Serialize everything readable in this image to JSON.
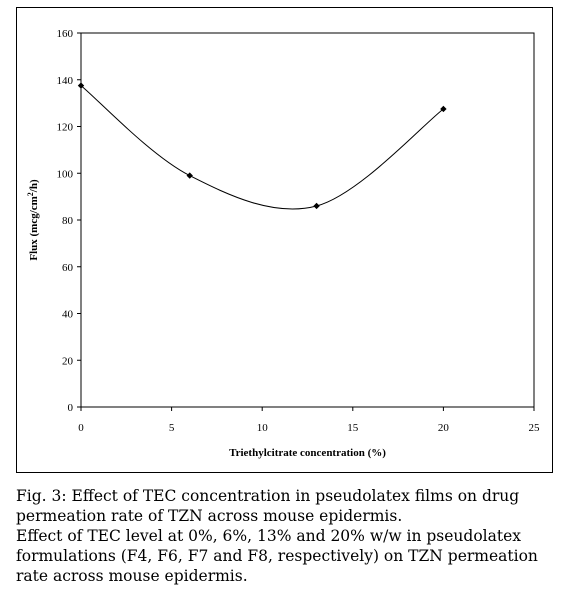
{
  "chart_data": {
    "type": "line",
    "smooth": true,
    "x": [
      0,
      6,
      13,
      20
    ],
    "y": [
      137.5,
      99,
      86,
      127.5
    ],
    "xlim": [
      0,
      25
    ],
    "ylim": [
      0,
      160
    ],
    "xticks": [
      0,
      5,
      10,
      15,
      20,
      25
    ],
    "yticks": [
      0,
      20,
      40,
      60,
      80,
      100,
      120,
      140,
      160
    ],
    "xlabel": "Triethylcitrate concentration (%)",
    "ylabel": "Flux (mcg/cm²/h)",
    "grid": false,
    "legend": "none",
    "line_color": "#000000",
    "marker": "diamond"
  },
  "caption": {
    "title": "Fig. 3: Effect of TEC concentration in pseudolatex films on drug permeation rate of TZN across mouse epidermis.",
    "body": "Effect of TEC level at 0%, 6%, 13% and 20% w/w in pseudolatex formulations (F4, F6, F7 and F8, respectively) on TZN permeation rate across mouse epidermis."
  }
}
